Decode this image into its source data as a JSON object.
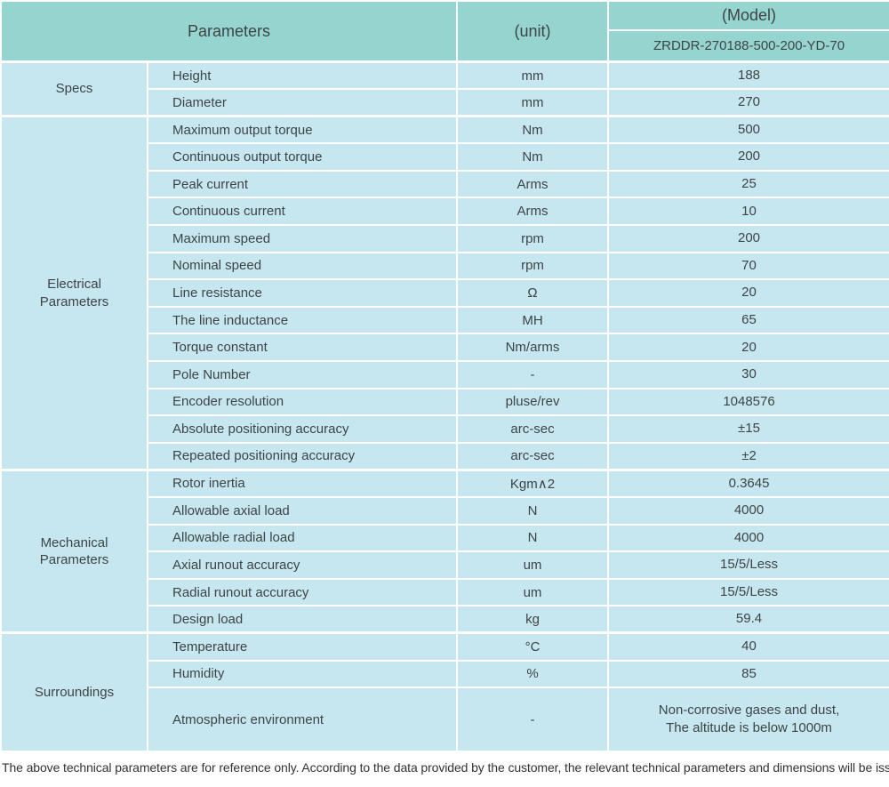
{
  "colors": {
    "header_bg": "#96d5cf",
    "body_bg": "#c6e7ef",
    "border": "#ffffff",
    "text": "#3e4446"
  },
  "header": {
    "parameters_label": "Parameters",
    "unit_label": "(unit)",
    "model_label": "(Model)",
    "model_value": "ZRDDR-270188-500-200-YD-70"
  },
  "sections": [
    {
      "name": "Specs",
      "rows": [
        {
          "parameter": "Height",
          "unit": "mm",
          "value": "188"
        },
        {
          "parameter": "Diameter",
          "unit": "mm",
          "value": "270"
        }
      ]
    },
    {
      "name": "Electrical\nParameters",
      "rows": [
        {
          "parameter": "Maximum output torque",
          "unit": "Nm",
          "value": "500"
        },
        {
          "parameter": "Continuous output torque",
          "unit": "Nm",
          "value": "200"
        },
        {
          "parameter": "Peak current",
          "unit": "Arms",
          "value": "25"
        },
        {
          "parameter": "Continuous current",
          "unit": "Arms",
          "value": "10"
        },
        {
          "parameter": "Maximum speed",
          "unit": "rpm",
          "value": "200"
        },
        {
          "parameter": "Nominal speed",
          "unit": "rpm",
          "value": "70"
        },
        {
          "parameter": "Line resistance",
          "unit": "Ω",
          "value": "20"
        },
        {
          "parameter": "The line inductance",
          "unit": "MH",
          "value": "65"
        },
        {
          "parameter": "Torque constant",
          "unit": "Nm/arms",
          "value": "20"
        },
        {
          "parameter": "Pole Number",
          "unit": "-",
          "value": "30"
        },
        {
          "parameter": "Encoder resolution",
          "unit": "pluse/rev",
          "value": "1048576"
        },
        {
          "parameter": "Absolute positioning accuracy",
          "unit": "arc-sec",
          "value": "±15"
        },
        {
          "parameter": "Repeated positioning accuracy",
          "unit": "arc-sec",
          "value": "±2"
        }
      ]
    },
    {
      "name": "Mechanical\nParameters",
      "rows": [
        {
          "parameter": "Rotor inertia",
          "unit": "Kgm∧2",
          "value": "0.3645"
        },
        {
          "parameter": "Allowable axial load",
          "unit": "N",
          "value": "4000"
        },
        {
          "parameter": "Allowable radial load",
          "unit": "N",
          "value": "4000"
        },
        {
          "parameter": "Axial runout accuracy",
          "unit": "um",
          "value": "15/5/Less"
        },
        {
          "parameter": "Radial runout accuracy",
          "unit": "um",
          "value": "15/5/Less"
        },
        {
          "parameter": "Design load",
          "unit": "kg",
          "value": "59.4"
        }
      ]
    },
    {
      "name": "Surroundings",
      "rows": [
        {
          "parameter": "Temperature",
          "unit": "°C",
          "value": "40"
        },
        {
          "parameter": "Humidity",
          "unit": "%",
          "value": "85"
        },
        {
          "parameter": "Atmospheric environment",
          "unit": "-",
          "value": "Non-corrosive gases and dust,\nThe altitude is below 1000m",
          "tall": true
        }
      ]
    }
  ],
  "footer_note": "The above technical parameters are for reference only. According to the data provided by the customer, the relevant technical parameters and dimensions will be issued."
}
